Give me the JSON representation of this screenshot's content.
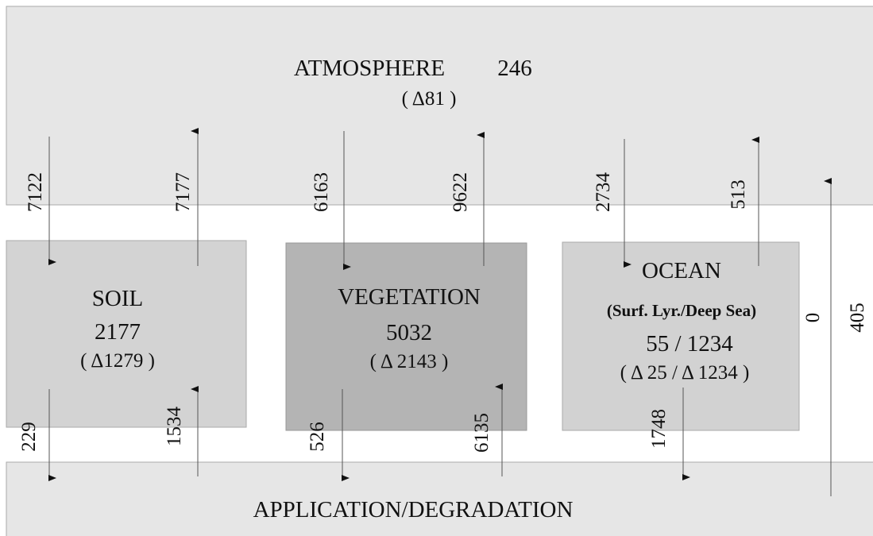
{
  "atmosphere": {
    "label": "ATMOSPHERE",
    "stock": 246,
    "delta": "( Δ81 )"
  },
  "soil": {
    "label": "SOIL",
    "stock": 2177,
    "delta": "( Δ1279 )"
  },
  "vegetation": {
    "label": "VEGETATION",
    "stock": 5032,
    "delta": "( Δ 2143 )"
  },
  "ocean": {
    "label": "OCEAN",
    "sublabel": "(Surf. Lyr./Deep Sea)",
    "stock": "55 / 1234",
    "delta": "( Δ 25 / Δ 1234 )"
  },
  "application": {
    "label": "APPLICATION/DEGRADATION"
  },
  "flows": [
    {
      "value": 7122
    },
    {
      "value": 7177
    },
    {
      "value": 6163
    },
    {
      "value": 9622
    },
    {
      "value": 2734
    },
    {
      "value": 513
    },
    {
      "value": 0
    },
    {
      "value": 405
    },
    {
      "value": 229
    },
    {
      "value": 1534
    },
    {
      "value": 526
    },
    {
      "value": 6135
    },
    {
      "value": 1748
    }
  ]
}
